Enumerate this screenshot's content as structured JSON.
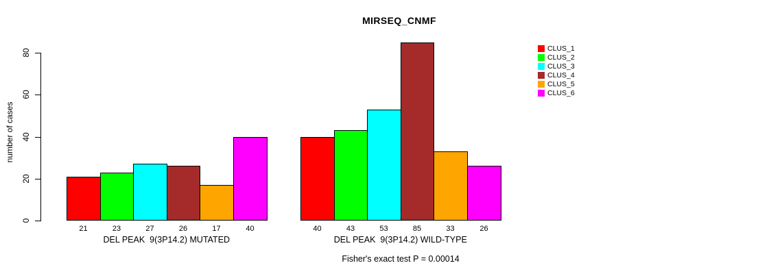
{
  "figure": {
    "background": "#FFFFFF",
    "text_color": "#000000",
    "axis_color": "#000000"
  },
  "chart_data": {
    "type": "bar",
    "title": "MIRSEQ_CNMF",
    "xlabel": "",
    "ylabel": "number of cases",
    "ylim": [
      0,
      85
    ],
    "yticks": [
      0,
      20,
      40,
      60,
      80
    ],
    "grid": false,
    "legend_position": "right-outside",
    "categories": [
      "DEL PEAK  9(3P14.2) MUTATED",
      "DEL PEAK  9(3P14.2) WILD-TYPE"
    ],
    "series": [
      {
        "name": "CLUS_1",
        "color": "#FF0000",
        "values": [
          21,
          40
        ]
      },
      {
        "name": "CLUS_2",
        "color": "#00FF00",
        "values": [
          23,
          43
        ]
      },
      {
        "name": "CLUS_3",
        "color": "#00FFFF",
        "values": [
          27,
          53
        ]
      },
      {
        "name": "CLUS_4",
        "color": "#A52A2A",
        "values": [
          26,
          85
        ]
      },
      {
        "name": "CLUS_5",
        "color": "#FFA500",
        "values": [
          17,
          33
        ]
      },
      {
        "name": "CLUS_6",
        "color": "#FF00FF",
        "values": [
          40,
          26
        ]
      }
    ],
    "bar_value_labels": [
      [
        21,
        23,
        27,
        26,
        17,
        40
      ],
      [
        40,
        43,
        53,
        85,
        33,
        26
      ]
    ],
    "footnote": "Fisher's exact test P = 0.00014"
  }
}
